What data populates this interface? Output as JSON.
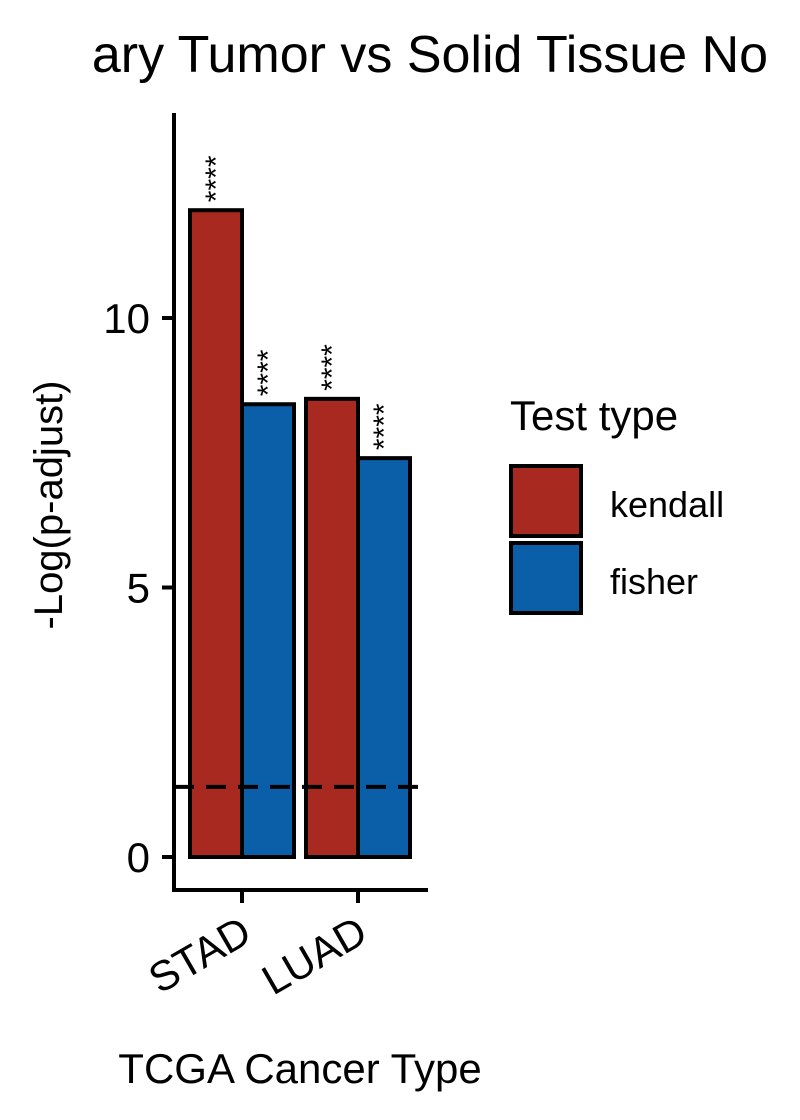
{
  "chart_data": {
    "type": "bar",
    "title": "ary Tumor vs Solid Tissue No",
    "xlabel": "TCGA Cancer Type",
    "ylabel": "-Log(p-adjust)",
    "categories": [
      "STAD",
      "LUAD"
    ],
    "series": [
      {
        "name": "kendall",
        "color": "#A8291F",
        "values": [
          12.0,
          8.5
        ],
        "labels": [
          "****",
          "****"
        ]
      },
      {
        "name": "fisher",
        "color": "#0B5EA8",
        "values": [
          8.4,
          7.4
        ],
        "labels": [
          "****",
          "****"
        ]
      }
    ],
    "yticks": [
      0,
      5,
      10
    ],
    "ylim": [
      -0.6,
      13.8
    ],
    "threshold": 1.3,
    "legend": {
      "title": "Test type",
      "position": "right"
    },
    "grid": false
  }
}
